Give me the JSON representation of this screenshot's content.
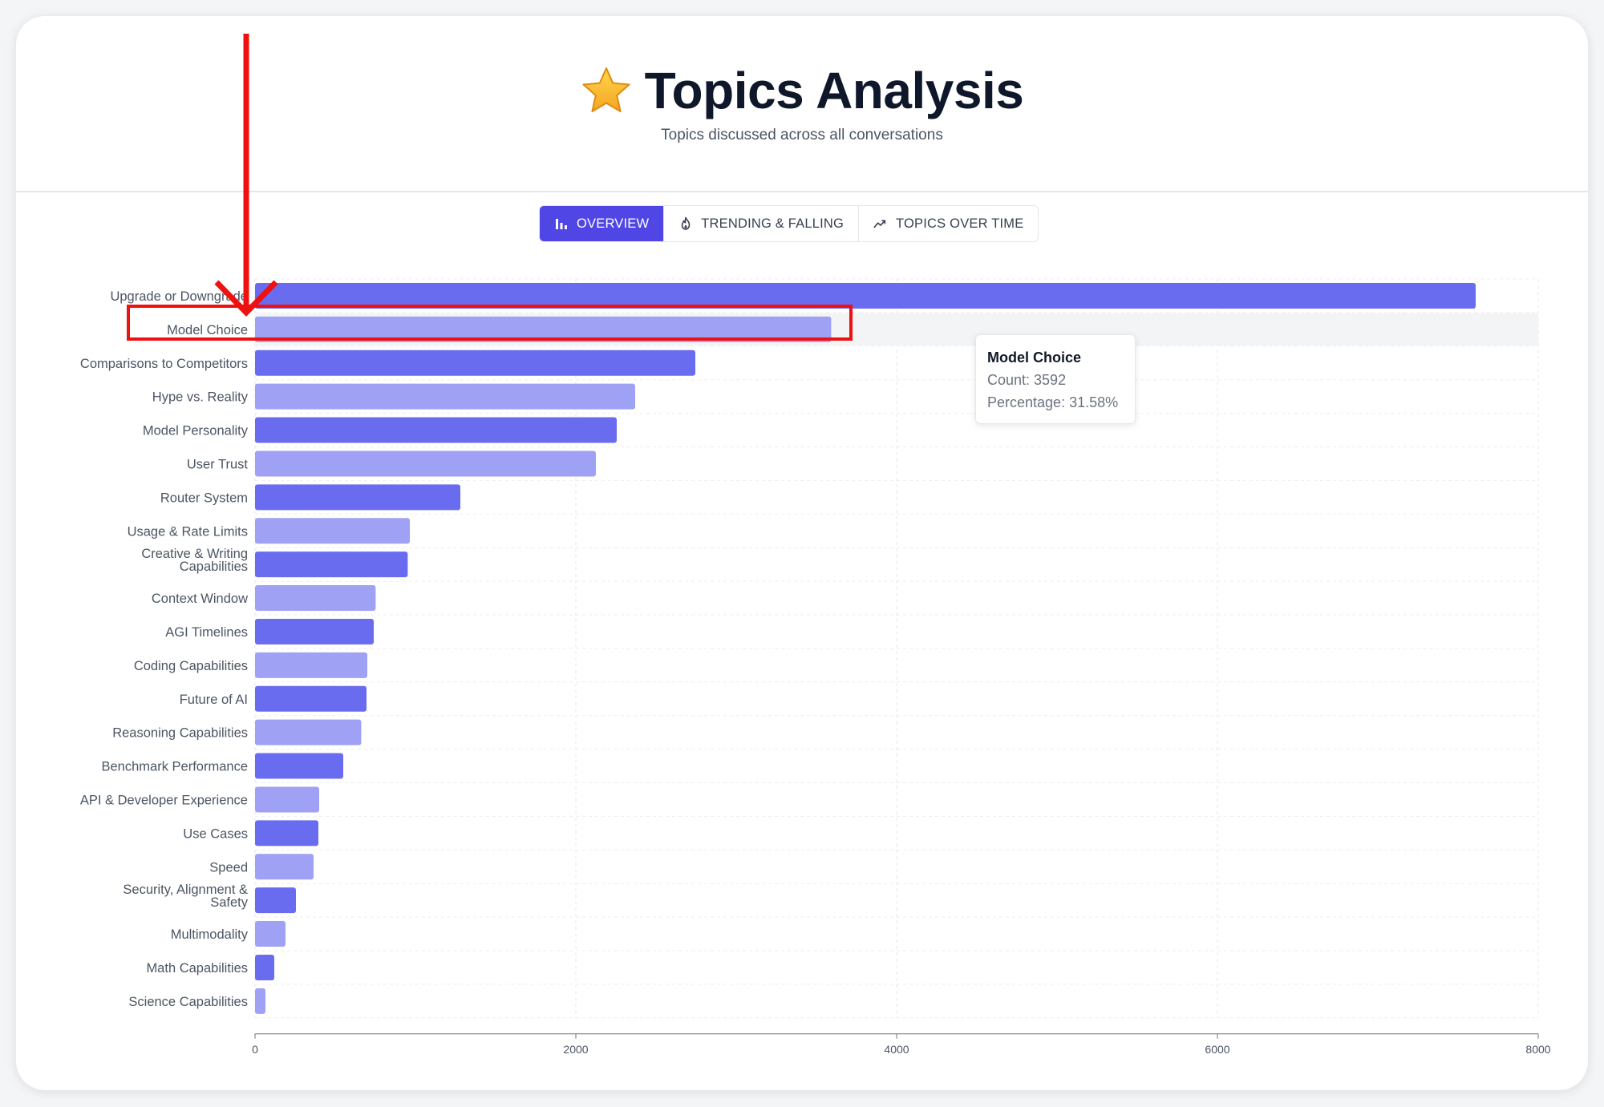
{
  "header": {
    "title": "Topics Analysis",
    "icon": "star-icon",
    "subtitle": "Topics discussed across all conversations"
  },
  "tabs": [
    {
      "label": "OVERVIEW",
      "icon": "bar-chart-icon",
      "active": true
    },
    {
      "label": "TRENDING & FALLING",
      "icon": "flame-icon",
      "active": false
    },
    {
      "label": "TOPICS OVER TIME",
      "icon": "trend-line-icon",
      "active": false
    }
  ],
  "colors": {
    "bar_primary": "#6a6cf0",
    "bar_secondary": "#9fa1f4",
    "highlight_band": "#f3f4f6",
    "accent": "#4f46e5",
    "annotation": "#ef1010"
  },
  "tooltip": {
    "title": "Model Choice",
    "count_line": "Count: 3592",
    "percentage_line": "Percentage: 31.58%"
  },
  "chart_data": {
    "type": "bar",
    "orientation": "horizontal",
    "categories": [
      "Upgrade or Downgrade",
      "Model Choice",
      "Comparisons to Competitors",
      "Hype vs. Reality",
      "Model Personality",
      "User Trust",
      "Router System",
      "Usage & Rate Limits",
      "Creative & Writing Capabilities",
      "Context Window",
      "AGI Timelines",
      "Coding Capabilities",
      "Future of AI",
      "Reasoning Capabilities",
      "Benchmark Performance",
      "API & Developer Experience",
      "Use Cases",
      "Speed",
      "Security, Alignment & Safety",
      "Multimodality",
      "Math Capabilities",
      "Science Capabilities"
    ],
    "values": [
      7610,
      3592,
      2745,
      2370,
      2255,
      2125,
      1280,
      965,
      952,
      752,
      740,
      700,
      695,
      662,
      550,
      400,
      395,
      365,
      255,
      190,
      120,
      65
    ],
    "xlim": [
      0,
      8000
    ],
    "x_ticks": [
      "0",
      "2000",
      "4000",
      "6000",
      "8000"
    ],
    "grid": true,
    "highlighted_category": "Model Choice",
    "title": "",
    "xlabel": "",
    "ylabel": ""
  }
}
